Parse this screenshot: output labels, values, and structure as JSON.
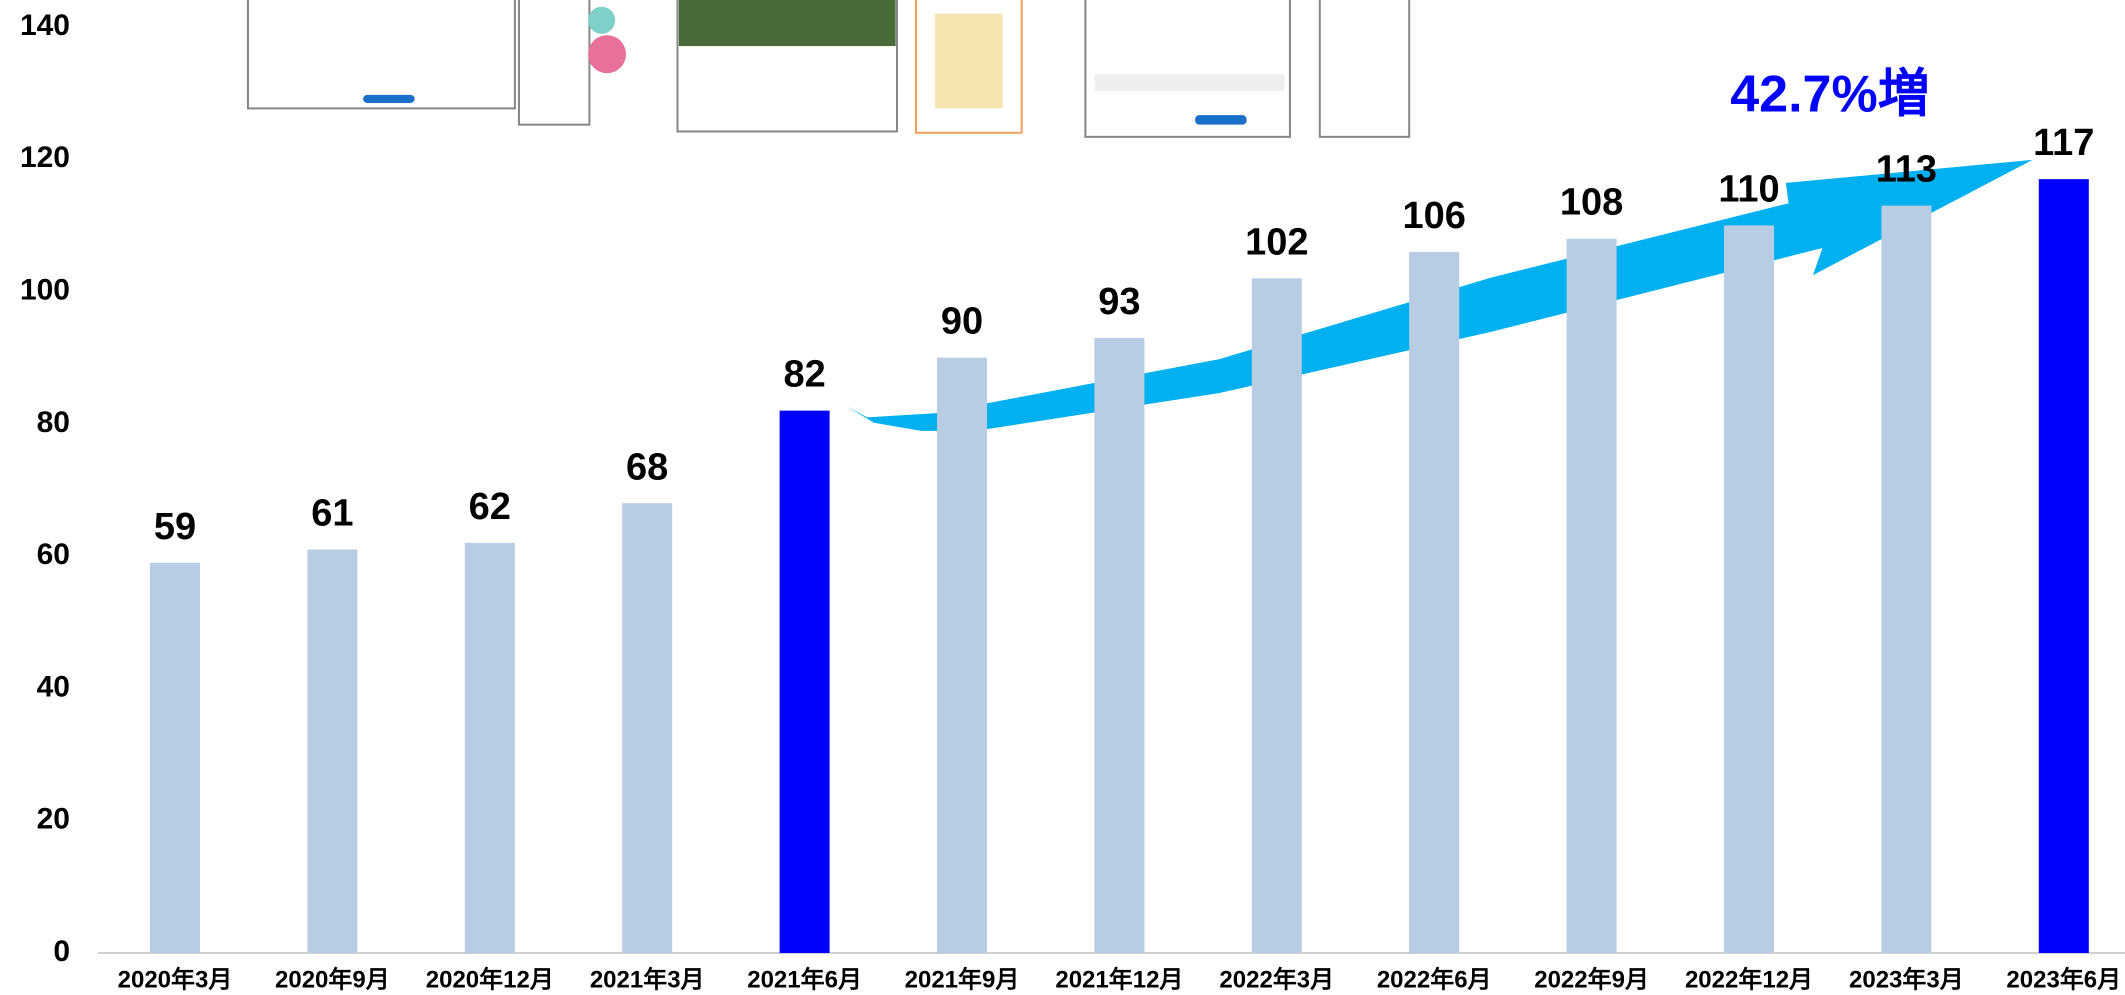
{
  "chart_data": {
    "type": "bar",
    "categories": [
      "2020年3月",
      "2020年9月",
      "2020年12月",
      "2021年3月",
      "2021年6月",
      "2021年9月",
      "2021年12月",
      "2022年3月",
      "2022年6月",
      "2022年9月",
      "2022年12月",
      "2023年3月",
      "2023年6月"
    ],
    "values": [
      59,
      61,
      62,
      68,
      82,
      90,
      93,
      102,
      106,
      108,
      110,
      113,
      117
    ],
    "colors": [
      "#b8cce4",
      "#b8cce4",
      "#b8cce4",
      "#b8cce4",
      "#0000ff",
      "#b8cce4",
      "#b8cce4",
      "#b8cce4",
      "#b8cce4",
      "#b8cce4",
      "#b8cce4",
      "#b8cce4",
      "#0000ff"
    ],
    "ylim": [
      0,
      140
    ],
    "yticks": [
      0,
      20,
      40,
      60,
      80,
      100,
      120,
      140
    ],
    "grid": false,
    "annotation": "42.7%増",
    "annotation_color": "#0000ff"
  }
}
